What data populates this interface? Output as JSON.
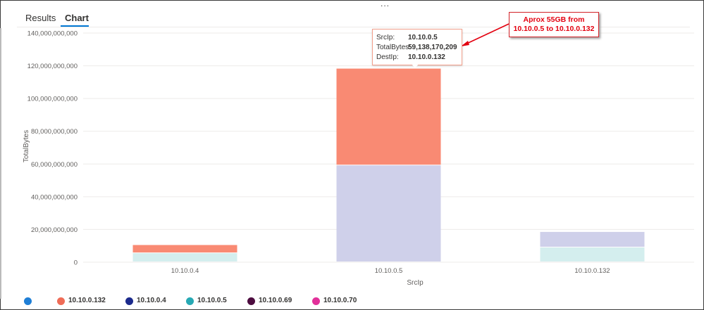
{
  "tabs": [
    {
      "label": "Results"
    },
    {
      "label": "Chart"
    }
  ],
  "ellipsis": "...",
  "chart_data": {
    "type": "bar",
    "stacked": true,
    "categories": [
      "10.10.0.4",
      "10.10.0.5",
      "10.10.0.132"
    ],
    "xlabel": "SrcIp",
    "ylabel": "TotalBytes",
    "ylim": [
      0,
      140000000000
    ],
    "yticks": [
      0,
      20000000000,
      40000000000,
      60000000000,
      80000000000,
      100000000000,
      120000000000,
      140000000000
    ],
    "ytick_labels": [
      "0",
      "20,000,000,000",
      "40,000,000,000",
      "60,000,000,000",
      "80,000,000,000",
      "100,000,000,000",
      "120,000,000,000",
      "140,000,000,000"
    ],
    "grid": true,
    "series": [
      {
        "name": "10.10.0.4",
        "color": "#cfd0ea",
        "values": [
          0,
          59138170209,
          9500000000
        ]
      },
      {
        "name": "10.10.0.5",
        "color": "#d4eeee",
        "values": [
          5500000000,
          0,
          9000000000
        ]
      },
      {
        "name": "10.10.0.132",
        "color": "#f98a73",
        "values": [
          5000000000,
          59138170209,
          0
        ]
      }
    ],
    "legend_position": "bottom-left"
  },
  "legend": [
    {
      "label": "",
      "color": "#1f7fd6"
    },
    {
      "label": "10.10.0.132",
      "color": "#ef6c57"
    },
    {
      "label": "10.10.0.4",
      "color": "#1b2a8c"
    },
    {
      "label": "10.10.0.5",
      "color": "#27a9b4"
    },
    {
      "label": "10.10.0.69",
      "color": "#4d0c3f"
    },
    {
      "label": "10.10.0.70",
      "color": "#e2309a"
    }
  ],
  "tooltip": {
    "rows": [
      {
        "key": "SrcIp:",
        "value": "10.10.0.5"
      },
      {
        "key": "TotalBytes:",
        "value": "59,138,170,209"
      },
      {
        "key": "DestIp:",
        "value": "10.10.0.132"
      }
    ]
  },
  "annotation": {
    "line1": "Aprox 55GB from",
    "line2": "10.10.0.5 to 10.10.0.132",
    "color": "#e3000f"
  }
}
